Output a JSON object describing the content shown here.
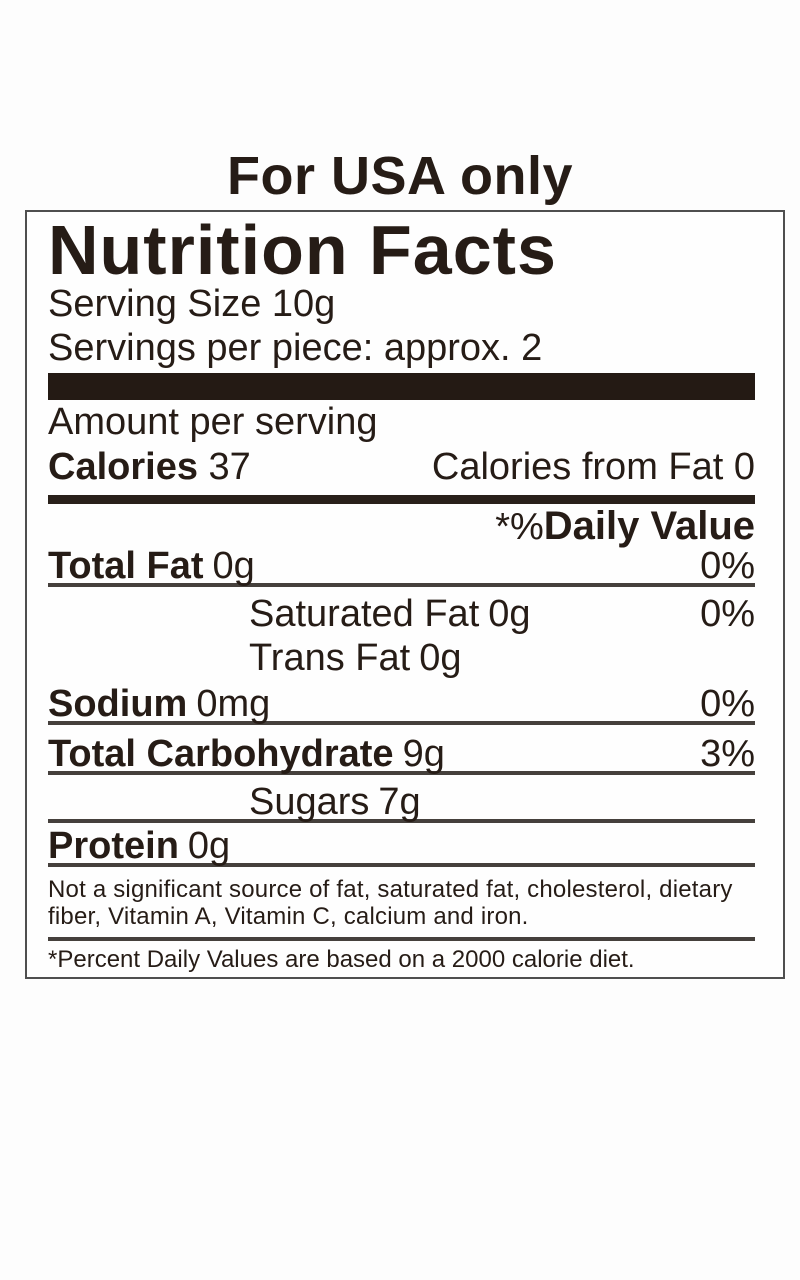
{
  "header": {
    "title": "For USA only"
  },
  "label": {
    "title": "Nutrition Facts",
    "serving_size": "Serving Size 10g",
    "servings_per_piece": "Servings per piece: approx. 2",
    "amount_per_serving": "Amount per serving",
    "calories": {
      "label": "Calories",
      "value": "37",
      "from_fat": "Calories from Fat 0"
    },
    "daily_value": {
      "prefix": "*%",
      "label": "Daily Value"
    },
    "rows": [
      {
        "name": "Total Fat",
        "amount": "0g",
        "dv": "0%"
      },
      {
        "name": "Saturated Fat",
        "amount": "0g",
        "dv": "0%"
      },
      {
        "name": "Trans Fat",
        "amount": "0g",
        "dv": ""
      },
      {
        "name": "Sodium",
        "amount": "0mg",
        "dv": "0%"
      },
      {
        "name": "Total Carbohydrate",
        "amount": "9g",
        "dv": "3%"
      },
      {
        "name": "Sugars",
        "amount": "7g",
        "dv": ""
      },
      {
        "name": "Protein",
        "amount": "0g",
        "dv": ""
      }
    ],
    "footnotes": {
      "not_significant": "Not a significant source of fat, saturated fat, cholesterol, dietary fiber, Vitamin A, Vitamin C, calcium and iron.",
      "percent_daily_values": "*Percent Daily Values are based on a 2000 calorie diet."
    }
  },
  "colors": {
    "text": "#261c16",
    "thick_bar": "#241a14",
    "rule": "#45403c",
    "box_border": "#4f4f4f",
    "background": "#fdfdfd"
  }
}
